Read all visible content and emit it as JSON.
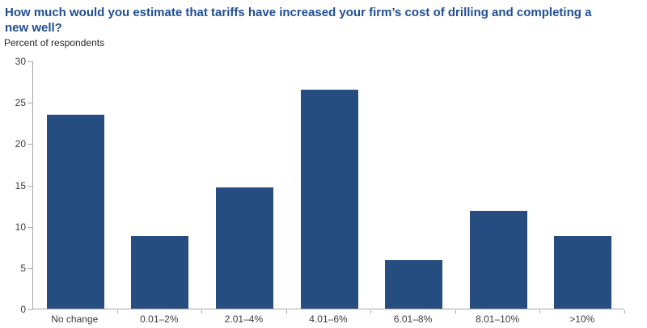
{
  "chart": {
    "title": "How much would you estimate that tariffs have increased your firm’s cost of drilling and completing a new well?",
    "subtitle": "Percent of respondents"
  },
  "chart_data": {
    "type": "bar",
    "title": "How much would you estimate that tariffs have increased your firm’s cost of drilling and completing a new well?",
    "ylabel": "Percent of respondents",
    "xlabel": "",
    "categories": [
      "No change",
      "0.01–2%",
      "2.01–4%",
      "4.01–6%",
      "6.01–8%",
      "8.01–10%",
      ">10%"
    ],
    "values": [
      23.5,
      8.8,
      14.7,
      26.5,
      5.9,
      11.8,
      8.8
    ],
    "ylim": [
      0,
      30
    ],
    "yticks": [
      0,
      5,
      10,
      15,
      20,
      25,
      30
    ],
    "grid": false,
    "legend": "none",
    "colors": {
      "bar": "#254D7F",
      "title": "#1F4E91",
      "subtitle": "#262626",
      "axis": "#A6A6A6",
      "tick_label": "#3B3B3B"
    }
  }
}
